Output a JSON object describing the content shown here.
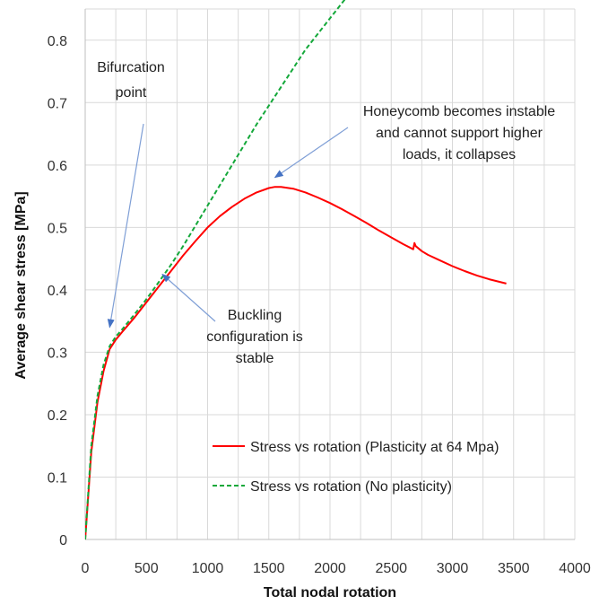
{
  "chart_data": {
    "type": "line",
    "xlabel": "Total nodal rotation",
    "ylabel": "Average shear stress [MPa]",
    "xlim": [
      0,
      4000
    ],
    "ylim": [
      0,
      0.85
    ],
    "x_ticks": [
      0,
      500,
      1000,
      1500,
      2000,
      2500,
      3000,
      3500,
      4000
    ],
    "y_ticks": [
      0,
      0.1,
      0.2,
      0.3,
      0.4,
      0.5,
      0.6,
      0.7,
      0.8
    ],
    "x_tick_labels": [
      "0",
      "500",
      "1000",
      "1500",
      "2000",
      "2500",
      "3000",
      "3500",
      "4000"
    ],
    "y_tick_labels": [
      "0",
      "0.1",
      "0.2",
      "0.3",
      "0.4",
      "0.5",
      "0.6",
      "0.7",
      "0.8"
    ],
    "grid": true,
    "legend_position": "bottom-right",
    "series": [
      {
        "name": "Stress vs rotation (Plasticity at 64 Mpa)",
        "color": "#ff0000",
        "dash": "solid",
        "x": [
          0,
          50,
          100,
          150,
          200,
          250,
          300,
          400,
          500,
          600,
          700,
          800,
          900,
          1000,
          1100,
          1200,
          1300,
          1400,
          1500,
          1550,
          1600,
          1700,
          1800,
          1900,
          2000,
          2100,
          2200,
          2300,
          2400,
          2500,
          2600,
          2680,
          2690,
          2700,
          2750,
          2800,
          2900,
          3000,
          3100,
          3200,
          3300,
          3440
        ],
        "y": [
          0,
          0.14,
          0.22,
          0.27,
          0.305,
          0.32,
          0.332,
          0.355,
          0.38,
          0.405,
          0.43,
          0.455,
          0.478,
          0.5,
          0.518,
          0.533,
          0.546,
          0.556,
          0.563,
          0.565,
          0.565,
          0.562,
          0.556,
          0.548,
          0.539,
          0.529,
          0.518,
          0.507,
          0.495,
          0.484,
          0.473,
          0.465,
          0.475,
          0.47,
          0.462,
          0.456,
          0.447,
          0.438,
          0.43,
          0.423,
          0.417,
          0.41
        ]
      },
      {
        "name": "Stress vs rotation (No plasticity)",
        "color": "#14a83a",
        "dash": "dashed",
        "x": [
          0,
          50,
          100,
          150,
          200,
          250,
          300,
          400,
          500,
          600,
          700,
          800,
          1000,
          1200,
          1400,
          1600,
          1800,
          2000,
          2200
        ],
        "y": [
          0,
          0.15,
          0.23,
          0.28,
          0.31,
          0.325,
          0.336,
          0.36,
          0.385,
          0.412,
          0.44,
          0.47,
          0.535,
          0.6,
          0.665,
          0.725,
          0.785,
          0.835,
          0.885
        ]
      }
    ],
    "annotations": [
      {
        "id": "bifurcation",
        "lines": [
          "Bifurcation",
          "point"
        ],
        "arrow_to": [
          200,
          0.34
        ]
      },
      {
        "id": "instable",
        "lines": [
          "Honeycomb becomes instable",
          "and cannot support higher",
          "loads, it collapses"
        ],
        "arrow_to": [
          1550,
          0.58
        ]
      },
      {
        "id": "buckling",
        "lines": [
          "Buckling",
          "configuration is",
          "stable"
        ],
        "arrow_to": [
          630,
          0.425
        ]
      }
    ]
  }
}
